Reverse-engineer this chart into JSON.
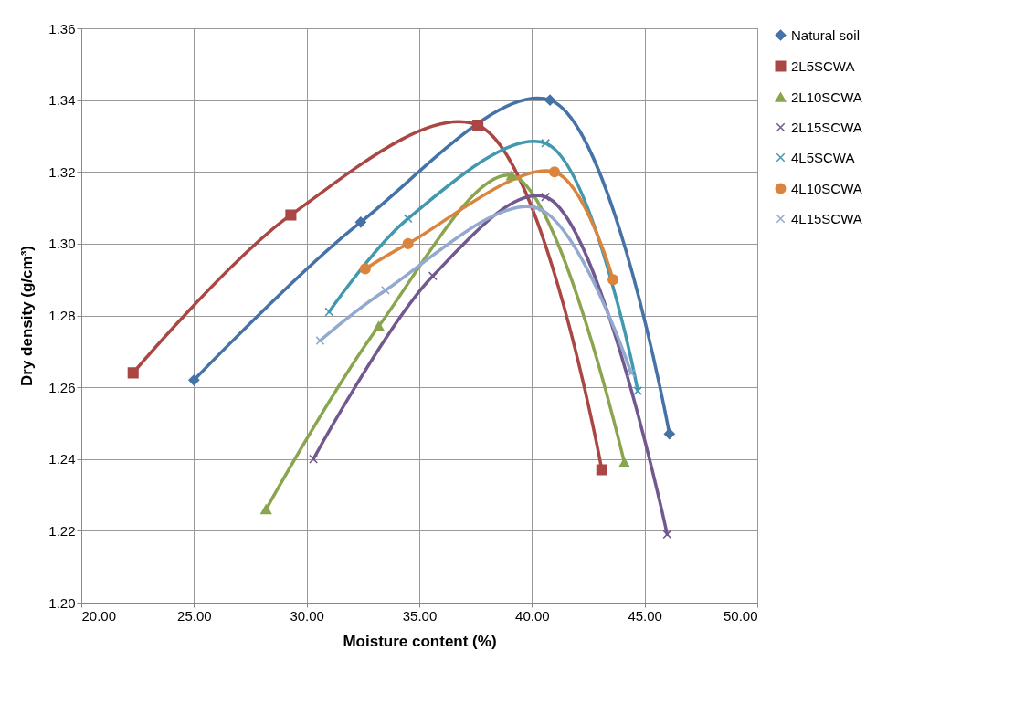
{
  "chart_data": {
    "type": "line",
    "xlabel": "Moisture content (%)",
    "ylabel": "Dry density (g/cm³)",
    "xlim": [
      20,
      50
    ],
    "xticks": [
      {
        "value": 20,
        "label": "20.00"
      },
      {
        "value": 25,
        "label": "25.00"
      },
      {
        "value": 30,
        "label": "30.00"
      },
      {
        "value": 35,
        "label": "35.00"
      },
      {
        "value": 40,
        "label": "40.00"
      },
      {
        "value": 45,
        "label": "45.00"
      },
      {
        "value": 50,
        "label": "50.00"
      }
    ],
    "ylim": [
      1.2,
      1.36
    ],
    "yticks": [
      {
        "value": 1.2,
        "label": "1.20"
      },
      1.22,
      1.24,
      1.26,
      1.28,
      {
        "value": 1.3,
        "label": "1.30"
      },
      1.32,
      1.34,
      1.36
    ],
    "grid": true,
    "legend": "right",
    "series": [
      {
        "name": "Natural soil",
        "color": "#4572a7",
        "marker": "diamond",
        "x": [
          25.0,
          32.4,
          40.8,
          46.1
        ],
        "values": [
          1.262,
          1.306,
          1.34,
          1.247
        ]
      },
      {
        "name": "2L5SCWA",
        "color": "#aa4643",
        "marker": "square",
        "x": [
          22.3,
          29.3,
          37.6,
          43.1
        ],
        "values": [
          1.264,
          1.308,
          1.333,
          1.237
        ]
      },
      {
        "name": "2L10SCWA",
        "color": "#89a54e",
        "marker": "triangle",
        "x": [
          28.2,
          33.2,
          39.1,
          44.1
        ],
        "values": [
          1.226,
          1.277,
          1.319,
          1.239
        ]
      },
      {
        "name": "2L15SCWA",
        "color": "#71588f",
        "marker": "cross",
        "x": [
          30.3,
          35.6,
          40.6,
          46.0
        ],
        "values": [
          1.24,
          1.291,
          1.313,
          1.219
        ]
      },
      {
        "name": "4L5SCWA",
        "color": "#4198af",
        "marker": "cross",
        "x": [
          31.0,
          34.5,
          40.6,
          44.7
        ],
        "values": [
          1.281,
          1.307,
          1.328,
          1.259
        ]
      },
      {
        "name": "4L10SCWA",
        "color": "#db843d",
        "marker": "circle",
        "x": [
          32.6,
          34.5,
          41.0,
          43.6
        ],
        "values": [
          1.293,
          1.3,
          1.32,
          1.29
        ]
      },
      {
        "name": "4L15SCWA",
        "color": "#93a9cf",
        "marker": "cross",
        "x": [
          30.6,
          33.5,
          40.2,
          44.4
        ],
        "values": [
          1.273,
          1.287,
          1.31,
          1.264
        ]
      }
    ]
  }
}
